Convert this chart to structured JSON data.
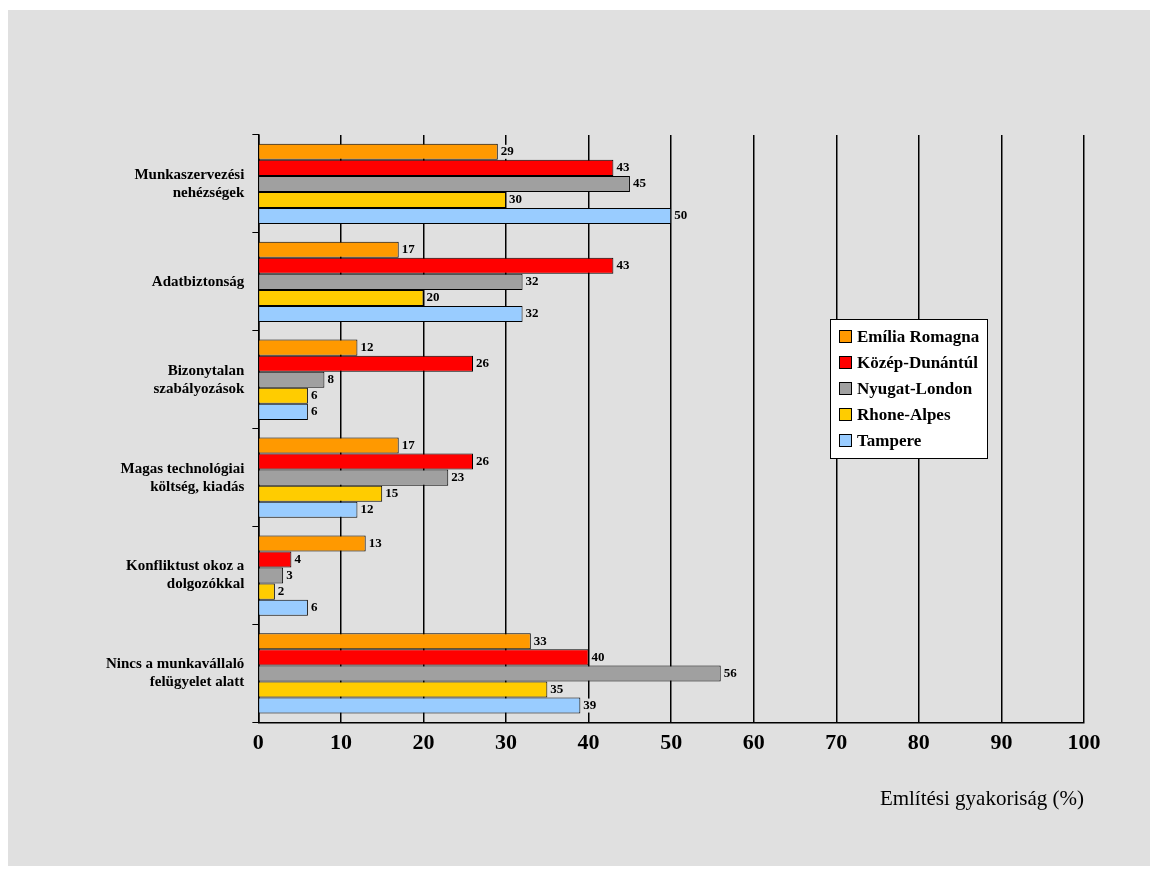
{
  "chart_data": {
    "type": "bar",
    "orientation": "horizontal",
    "categories": [
      "Munkaszervezési\nnehézségek",
      "Adatbiztonság",
      "Bizonytalan\nszabályozások",
      "Magas technológiai\nköltség, kiadás",
      "Konfliktust okoz a\ndolgozókkal",
      "Nincs a munkavállaló\nfelügyelet alatt"
    ],
    "series": [
      {
        "name": "Emília Romagna",
        "color": "#ff9900",
        "values": [
          29,
          17,
          12,
          17,
          13,
          33
        ]
      },
      {
        "name": "Közép-Dunántúl",
        "color": "#ff0000",
        "values": [
          43,
          43,
          26,
          26,
          4,
          40
        ]
      },
      {
        "name": "Nyugat-London",
        "color": "#a0a0a0",
        "values": [
          45,
          32,
          8,
          23,
          3,
          56
        ]
      },
      {
        "name": "Rhone-Alpes",
        "color": "#ffcc00",
        "values": [
          30,
          20,
          6,
          15,
          2,
          35
        ]
      },
      {
        "name": "Tampere",
        "color": "#99ccff",
        "values": [
          50,
          32,
          6,
          12,
          6,
          39
        ]
      }
    ],
    "xlabel": "Említési gyakoriság (%)",
    "xlim": [
      0,
      100
    ],
    "xticks": [
      0,
      10,
      20,
      30,
      40,
      50,
      60,
      70,
      80,
      90,
      100
    ],
    "grid": "x",
    "legend": "right",
    "data_labels": true
  }
}
